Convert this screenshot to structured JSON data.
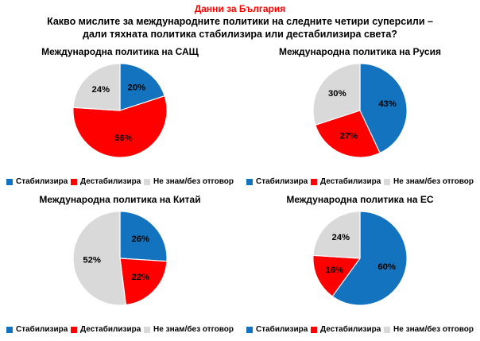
{
  "header": {
    "tagline": "Данни за България",
    "question_line1": "Какво мислите за международните политики на следните четири суперсили –",
    "question_line2": "дали тяхната политика стабилизира или дестабилизира света?"
  },
  "colors": {
    "stabilizes": "#1373BE",
    "destabilizes": "#FE0000",
    "no_answer": "#D9D9D9",
    "tagline": "#FF0000",
    "value_labels": "#000000"
  },
  "legend": {
    "stabilizes": "Стабилизира",
    "destabilizes": "Дестабилизира",
    "no_answer": "Не знам/без отговор"
  },
  "chart_data": [
    {
      "type": "pie",
      "title": "Международна политика на САЩ",
      "categories": [
        "Стабилизира",
        "Дестабилизира",
        "Не знам/без отговор"
      ],
      "values": [
        20,
        56,
        24
      ],
      "unit": "%",
      "start_angle_deg": 0,
      "direction": "clockwise",
      "legend_position": "bottom"
    },
    {
      "type": "pie",
      "title": "Международна политика на Русия",
      "categories": [
        "Стабилизира",
        "Дестабилизира",
        "Не знам/без отговор"
      ],
      "values": [
        43,
        27,
        30
      ],
      "unit": "%",
      "start_angle_deg": 0,
      "direction": "clockwise",
      "legend_position": "bottom"
    },
    {
      "type": "pie",
      "title": "Международна политика на Китай",
      "categories": [
        "Стабилизира",
        "Дестабилизира",
        "Не знам/без отговор"
      ],
      "values": [
        26,
        22,
        52
      ],
      "unit": "%",
      "start_angle_deg": 0,
      "direction": "clockwise",
      "legend_position": "bottom"
    },
    {
      "type": "pie",
      "title": "Международна политика на ЕС",
      "categories": [
        "Стабилизира",
        "Дестабилизира",
        "Не знам/без отговор"
      ],
      "values": [
        60,
        16,
        24
      ],
      "unit": "%",
      "start_angle_deg": 0,
      "direction": "clockwise",
      "legend_position": "bottom"
    }
  ]
}
